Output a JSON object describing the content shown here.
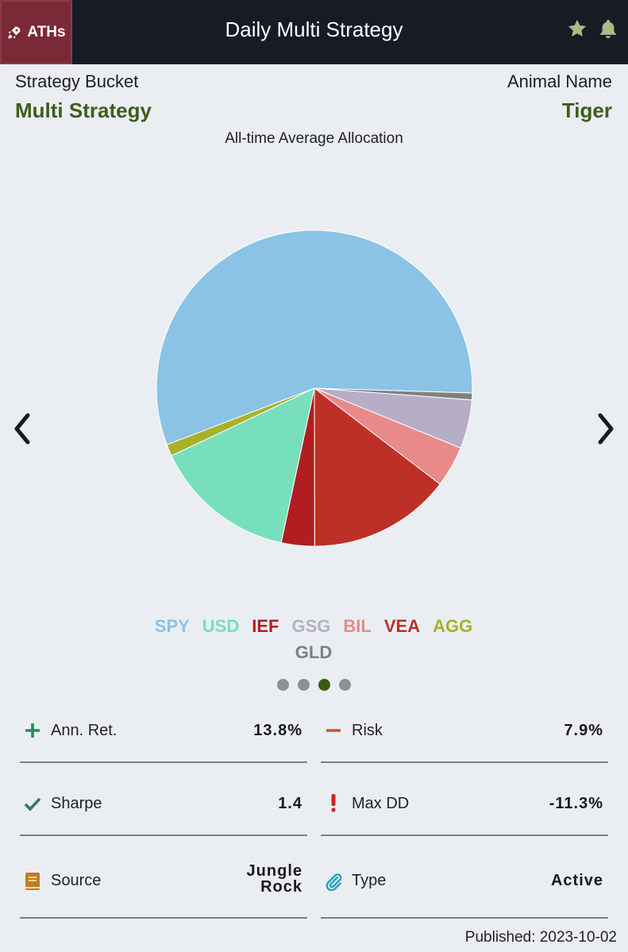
{
  "header": {
    "brand_label": "ATHs",
    "title": "Daily Multi Strategy",
    "icons": [
      "rocket-icon",
      "star-icon",
      "bell-icon"
    ],
    "icon_color": "#a6bb86"
  },
  "info": {
    "bucket_label": "Strategy Bucket",
    "bucket_value": "Multi Strategy",
    "animal_label": "Animal Name",
    "animal_value": "Tiger"
  },
  "chart_data": {
    "type": "pie",
    "title": "All-time Average Allocation",
    "labels": [
      "SPY",
      "GLD",
      "GSG",
      "BIL",
      "VEA",
      "IEF",
      "USD",
      "AGG"
    ],
    "values": [
      56.3,
      0.7,
      5.0,
      4.2,
      14.6,
      3.4,
      14.6,
      1.2
    ],
    "colors": [
      "#8ac3e5",
      "#808080",
      "#b6aec6",
      "#e88a8a",
      "#bd3028",
      "#b01e22",
      "#78dfbc",
      "#a9b02a"
    ],
    "legend": [
      {
        "label": "SPY",
        "color": "#8ac3e5"
      },
      {
        "label": "USD",
        "color": "#78dfbc"
      },
      {
        "label": "IEF",
        "color": "#b01e22"
      },
      {
        "label": "GSG",
        "color": "#b6aec6"
      },
      {
        "label": "BIL",
        "color": "#e88a8a"
      },
      {
        "label": "VEA",
        "color": "#bd3028"
      },
      {
        "label": "AGG",
        "color": "#a9b02a"
      },
      {
        "label": "GLD",
        "color": "#808080"
      }
    ]
  },
  "carousel": {
    "count": 4,
    "active_index": 2
  },
  "metrics": [
    {
      "name": "Ann. Ret.",
      "value": "13.8%",
      "icon": "plus-icon"
    },
    {
      "name": "Risk",
      "value": "7.9%",
      "icon": "minus-icon"
    },
    {
      "name": "Sharpe",
      "value": "1.4",
      "icon": "check-icon"
    },
    {
      "name": "Max DD",
      "value": "-11.3%",
      "icon": "exclamation-icon"
    },
    {
      "name": "Source",
      "value_line1": "Jungle",
      "value_line2": "Rock",
      "icon": "book-icon"
    },
    {
      "name": "Type",
      "value": "Active",
      "icon": "paperclip-icon"
    }
  ],
  "footer": {
    "published": "Published: 2023-10-02"
  }
}
